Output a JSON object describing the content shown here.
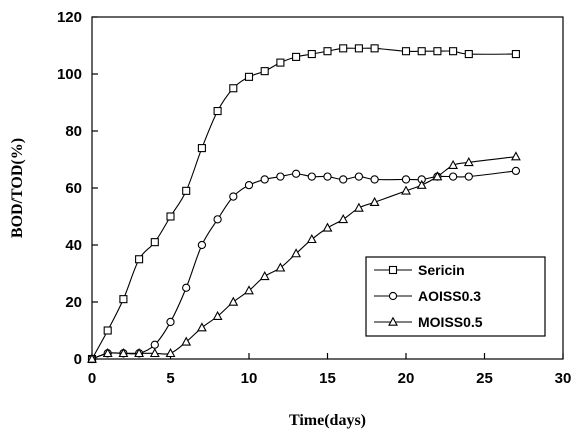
{
  "chart_data": {
    "type": "line",
    "title": "",
    "xlabel": "Time(days)",
    "ylabel": "BOD/TOD(%)",
    "xlim": [
      0,
      30
    ],
    "ylim": [
      0,
      120
    ],
    "xticks": [
      0,
      5,
      10,
      15,
      20,
      25,
      30
    ],
    "yticks": [
      0,
      20,
      40,
      60,
      80,
      100,
      120
    ],
    "grid": false,
    "legend_position": "bottom-right",
    "series": [
      {
        "name": "Sericin",
        "marker": "square",
        "x": [
          0,
          1,
          2,
          3,
          4,
          5,
          6,
          7,
          8,
          9,
          10,
          11,
          12,
          13,
          14,
          15,
          16,
          17,
          18,
          20,
          21,
          22,
          23,
          24,
          27
        ],
        "y": [
          0,
          10,
          21,
          35,
          41,
          50,
          59,
          74,
          87,
          95,
          99,
          101,
          104,
          106,
          107,
          108,
          109,
          109,
          109,
          108,
          108,
          108,
          108,
          107,
          107
        ]
      },
      {
        "name": "AOISS0.3",
        "marker": "circle",
        "x": [
          0,
          1,
          2,
          3,
          4,
          5,
          6,
          7,
          8,
          9,
          10,
          11,
          12,
          13,
          14,
          15,
          16,
          17,
          18,
          20,
          21,
          22,
          23,
          24,
          27
        ],
        "y": [
          0,
          2,
          2,
          2,
          5,
          13,
          25,
          40,
          49,
          57,
          61,
          63,
          64,
          65,
          64,
          64,
          63,
          64,
          63,
          63,
          63,
          64,
          64,
          64,
          66
        ]
      },
      {
        "name": "MOISS0.5",
        "marker": "triangle",
        "x": [
          0,
          1,
          2,
          3,
          4,
          5,
          6,
          7,
          8,
          9,
          10,
          11,
          12,
          13,
          14,
          15,
          16,
          17,
          18,
          20,
          21,
          22,
          23,
          24,
          27
        ],
        "y": [
          0,
          2,
          2,
          2,
          2,
          2,
          6,
          11,
          15,
          20,
          24,
          29,
          32,
          37,
          42,
          46,
          49,
          53,
          55,
          59,
          61,
          64,
          68,
          69,
          71
        ]
      }
    ]
  }
}
